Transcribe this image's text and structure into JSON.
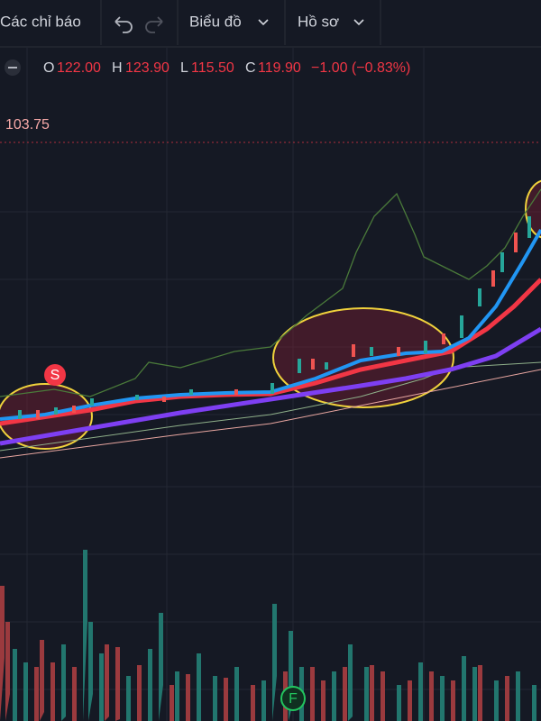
{
  "toolbar": {
    "indicators": "Các chỉ báo",
    "chart": "Biểu đồ",
    "profile": "Hồ sơ"
  },
  "legend": {
    "o_label": "O",
    "o": "122.00",
    "h_label": "H",
    "h": "123.90",
    "l_label": "L",
    "l": "115.50",
    "c_label": "C",
    "c": "119.90",
    "change": "−1.00 (−0.83%)"
  },
  "price_line": "103.75",
  "markers": {
    "sell": "S",
    "f": "F"
  }
}
